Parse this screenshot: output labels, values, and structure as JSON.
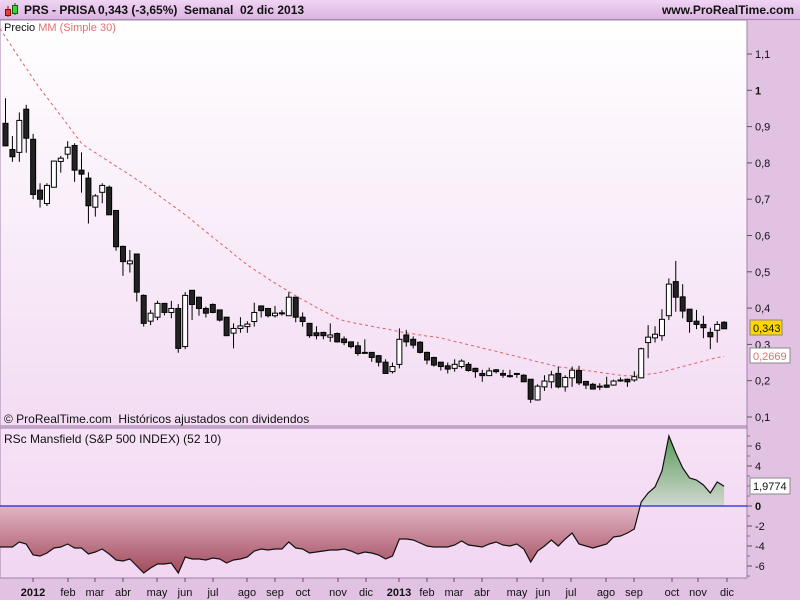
{
  "header": {
    "symbol": "PRS - PRISA",
    "quote": "0,343 (-3,65%)",
    "period": "Semanal  02 dic 2013",
    "site": "www.ProRealTime.com"
  },
  "price_panel": {
    "title": "Precio",
    "ma_label": "MM (Simple 30)",
    "footer": "© ProRealTime.com  Históricos ajustados con dividendos",
    "last_price_label": "0,343",
    "ma_last_label": "0,2669"
  },
  "indicator_panel": {
    "title": "RSc Mansfield (S&P 500 INDEX) (52 10)",
    "last_value_label": "1,9774"
  },
  "colors": {
    "up_candle": "#ffffff",
    "down_candle": "#222222",
    "ma_line": "#e06060",
    "zero_line": "#2020e0",
    "negative_fill": "#a85060",
    "positive_fill": "#5a9a5a",
    "last_price_bg": "#ffd700"
  },
  "chart_data": [
    {
      "type": "candlestick",
      "title": "",
      "ylim": [
        0.08,
        1.19
      ],
      "y_ticks": [
        "1,1",
        "1",
        "0,9",
        "0,8",
        "0,7",
        "0,6",
        "0,5",
        "0,4",
        "0,3",
        "0,2",
        "0,1"
      ],
      "x_ticks": [
        "2012",
        "feb",
        "mar",
        "abr",
        "may",
        "jun",
        "jul",
        "ago",
        "sep",
        "oct",
        "nov",
        "dic",
        "2013",
        "feb",
        "mar",
        "abr",
        "may",
        "jun",
        "jul",
        "ago",
        "sep",
        "oct",
        "nov",
        "dic"
      ],
      "series": [
        {
          "name": "Precio",
          "ohlc": [
            [
              0.909,
              0.978,
              0.846,
              0.847
            ],
            [
              0.837,
              0.874,
              0.803,
              0.817
            ],
            [
              0.829,
              0.939,
              0.803,
              0.917
            ],
            [
              0.948,
              0.96,
              0.828,
              0.868
            ],
            [
              0.865,
              0.88,
              0.7,
              0.713
            ],
            [
              0.725,
              0.744,
              0.677,
              0.7
            ],
            [
              0.688,
              0.744,
              0.681,
              0.738
            ],
            [
              0.733,
              0.805,
              0.733,
              0.805
            ],
            [
              0.804,
              0.819,
              0.773,
              0.813
            ],
            [
              0.824,
              0.86,
              0.811,
              0.843
            ],
            [
              0.848,
              0.854,
              0.748,
              0.78
            ],
            [
              0.78,
              0.829,
              0.718,
              0.769
            ],
            [
              0.758,
              0.774,
              0.633,
              0.682
            ],
            [
              0.678,
              0.714,
              0.652,
              0.709
            ],
            [
              0.719,
              0.744,
              0.689,
              0.738
            ],
            [
              0.733,
              0.738,
              0.657,
              0.657
            ],
            [
              0.669,
              0.67,
              0.558,
              0.569
            ],
            [
              0.57,
              0.572,
              0.489,
              0.528
            ],
            [
              0.522,
              0.56,
              0.498,
              0.53
            ],
            [
              0.549,
              0.549,
              0.418,
              0.444
            ],
            [
              0.435,
              0.438,
              0.349,
              0.358
            ],
            [
              0.364,
              0.395,
              0.353,
              0.386
            ],
            [
              0.375,
              0.42,
              0.367,
              0.413
            ],
            [
              0.413,
              0.413,
              0.38,
              0.388
            ],
            [
              0.388,
              0.42,
              0.372,
              0.399
            ],
            [
              0.399,
              0.411,
              0.277,
              0.289
            ],
            [
              0.294,
              0.444,
              0.287,
              0.435
            ],
            [
              0.449,
              0.45,
              0.367,
              0.41
            ],
            [
              0.43,
              0.431,
              0.379,
              0.399
            ],
            [
              0.399,
              0.404,
              0.374,
              0.386
            ],
            [
              0.41,
              0.413,
              0.386,
              0.388
            ],
            [
              0.395,
              0.395,
              0.363,
              0.367
            ],
            [
              0.375,
              0.375,
              0.324,
              0.324
            ],
            [
              0.331,
              0.358,
              0.289,
              0.344
            ],
            [
              0.344,
              0.375,
              0.332,
              0.351
            ],
            [
              0.349,
              0.364,
              0.332,
              0.356
            ],
            [
              0.363,
              0.415,
              0.349,
              0.388
            ],
            [
              0.406,
              0.406,
              0.374,
              0.393
            ],
            [
              0.399,
              0.399,
              0.374,
              0.379
            ],
            [
              0.379,
              0.406,
              0.374,
              0.386
            ],
            [
              0.387,
              0.395,
              0.379,
              0.387
            ],
            [
              0.379,
              0.444,
              0.379,
              0.43
            ],
            [
              0.43,
              0.431,
              0.361,
              0.375
            ],
            [
              0.375,
              0.388,
              0.349,
              0.363
            ],
            [
              0.358,
              0.358,
              0.318,
              0.324
            ],
            [
              0.332,
              0.35,
              0.314,
              0.324
            ],
            [
              0.333,
              0.335,
              0.314,
              0.324
            ],
            [
              0.32,
              0.358,
              0.307,
              0.326
            ],
            [
              0.33,
              0.333,
              0.305,
              0.307
            ],
            [
              0.315,
              0.322,
              0.298,
              0.305
            ],
            [
              0.307,
              0.307,
              0.289,
              0.294
            ],
            [
              0.296,
              0.307,
              0.269,
              0.275
            ],
            [
              0.278,
              0.314,
              0.275,
              0.278
            ],
            [
              0.278,
              0.278,
              0.252,
              0.264
            ],
            [
              0.269,
              0.271,
              0.239,
              0.251
            ],
            [
              0.251,
              0.259,
              0.22,
              0.22
            ],
            [
              0.225,
              0.25,
              0.22,
              0.239
            ],
            [
              0.245,
              0.344,
              0.234,
              0.314
            ],
            [
              0.326,
              0.34,
              0.294,
              0.307
            ],
            [
              0.314,
              0.322,
              0.289,
              0.298
            ],
            [
              0.306,
              0.309,
              0.275,
              0.278
            ],
            [
              0.278,
              0.28,
              0.245,
              0.257
            ],
            [
              0.264,
              0.266,
              0.239,
              0.243
            ],
            [
              0.251,
              0.251,
              0.228,
              0.239
            ],
            [
              0.241,
              0.25,
              0.22,
              0.232
            ],
            [
              0.234,
              0.259,
              0.225,
              0.245
            ],
            [
              0.239,
              0.259,
              0.234,
              0.254
            ],
            [
              0.245,
              0.251,
              0.225,
              0.228
            ],
            [
              0.234,
              0.236,
              0.208,
              0.225
            ],
            [
              0.22,
              0.23,
              0.197,
              0.214
            ],
            [
              0.214,
              0.236,
              0.214,
              0.227
            ],
            [
              0.23,
              0.232,
              0.22,
              0.225
            ],
            [
              0.22,
              0.23,
              0.208,
              0.215
            ],
            [
              0.214,
              0.23,
              0.208,
              0.214
            ],
            [
              0.22,
              0.22,
              0.208,
              0.22
            ],
            [
              0.215,
              0.218,
              0.197,
              0.197
            ],
            [
              0.204,
              0.204,
              0.139,
              0.149
            ],
            [
              0.147,
              0.19,
              0.145,
              0.185
            ],
            [
              0.183,
              0.215,
              0.172,
              0.199
            ],
            [
              0.197,
              0.227,
              0.179,
              0.216
            ],
            [
              0.22,
              0.239,
              0.179,
              0.183
            ],
            [
              0.183,
              0.215,
              0.17,
              0.209
            ],
            [
              0.208,
              0.239,
              0.183,
              0.229
            ],
            [
              0.228,
              0.241,
              0.188,
              0.194
            ],
            [
              0.198,
              0.198,
              0.177,
              0.188
            ],
            [
              0.19,
              0.194,
              0.177,
              0.177
            ],
            [
              0.185,
              0.193,
              0.174,
              0.185
            ],
            [
              0.188,
              0.211,
              0.18,
              0.182
            ],
            [
              0.188,
              0.203,
              0.186,
              0.199
            ],
            [
              0.202,
              0.209,
              0.197,
              0.202
            ],
            [
              0.204,
              0.206,
              0.183,
              0.197
            ],
            [
              0.202,
              0.226,
              0.197,
              0.211
            ],
            [
              0.208,
              0.291,
              0.206,
              0.288
            ],
            [
              0.305,
              0.353,
              0.262,
              0.32
            ],
            [
              0.318,
              0.35,
              0.305,
              0.328
            ],
            [
              0.324,
              0.397,
              0.31,
              0.369
            ],
            [
              0.379,
              0.482,
              0.367,
              0.466
            ],
            [
              0.473,
              0.53,
              0.39,
              0.43
            ],
            [
              0.431,
              0.466,
              0.372,
              0.392
            ],
            [
              0.397,
              0.397,
              0.332,
              0.363
            ],
            [
              0.364,
              0.395,
              0.342,
              0.355
            ],
            [
              0.355,
              0.379,
              0.317,
              0.346
            ],
            [
              0.333,
              0.346,
              0.287,
              0.321
            ],
            [
              0.339,
              0.364,
              0.305,
              0.355
            ],
            [
              0.361,
              0.364,
              0.342,
              0.343
            ]
          ]
        },
        {
          "name": "MM (Simple 30)",
          "values": [
            1.147,
            1.118,
            1.089,
            1.061,
            1.032,
            1.005,
            0.98,
            0.955,
            0.93,
            0.905,
            0.879,
            0.854,
            0.84,
            0.828,
            0.816,
            0.803,
            0.791,
            0.779,
            0.767,
            0.754,
            0.741,
            0.727,
            0.713,
            0.699,
            0.685,
            0.671,
            0.657,
            0.642,
            0.626,
            0.611,
            0.595,
            0.58,
            0.565,
            0.549,
            0.534,
            0.519,
            0.506,
            0.494,
            0.481,
            0.469,
            0.457,
            0.446,
            0.434,
            0.423,
            0.413,
            0.402,
            0.392,
            0.382,
            0.371,
            0.365,
            0.361,
            0.357,
            0.354,
            0.35,
            0.346,
            0.343,
            0.339,
            0.335,
            0.332,
            0.329,
            0.326,
            0.323,
            0.321,
            0.318,
            0.313,
            0.308,
            0.304,
            0.299,
            0.295,
            0.29,
            0.285,
            0.281,
            0.276,
            0.271,
            0.267,
            0.262,
            0.257,
            0.252,
            0.248,
            0.243,
            0.238,
            0.236,
            0.233,
            0.231,
            0.228,
            0.226,
            0.223,
            0.22,
            0.218,
            0.215,
            0.213,
            0.215,
            0.216,
            0.218,
            0.22,
            0.224,
            0.229,
            0.234,
            0.239,
            0.244,
            0.249,
            0.254,
            0.259,
            0.264,
            0.2669
          ]
        }
      ]
    },
    {
      "type": "area",
      "title": "RSc Mansfield (S&P 500 INDEX) (52 10)",
      "ylim": [
        -7,
        8
      ],
      "y_ticks": [
        "6",
        "4",
        "0",
        "-2",
        "-4",
        "-6"
      ],
      "baseline": 0,
      "series": [
        {
          "name": "RSc Mansfield",
          "values": [
            -4.1,
            -4.1,
            -3.6,
            -3.8,
            -4.9,
            -5.0,
            -4.7,
            -4.2,
            -4.1,
            -3.8,
            -4.2,
            -4.2,
            -4.8,
            -4.6,
            -4.3,
            -4.8,
            -5.4,
            -5.5,
            -5.3,
            -6.0,
            -6.7,
            -6.2,
            -5.8,
            -5.8,
            -5.7,
            -6.7,
            -5.1,
            -5.3,
            -5.3,
            -5.4,
            -5.2,
            -5.3,
            -5.7,
            -5.4,
            -5.3,
            -5.1,
            -4.5,
            -4.3,
            -4.4,
            -4.3,
            -4.3,
            -3.6,
            -4.2,
            -4.3,
            -4.7,
            -4.6,
            -4.5,
            -4.4,
            -4.4,
            -4.3,
            -4.5,
            -4.8,
            -4.6,
            -4.7,
            -4.9,
            -5.3,
            -5.0,
            -3.3,
            -3.3,
            -3.4,
            -3.7,
            -4.0,
            -4.1,
            -4.1,
            -4.1,
            -3.9,
            -3.5,
            -3.9,
            -4.0,
            -4.1,
            -3.8,
            -3.6,
            -3.9,
            -4.0,
            -3.8,
            -4.3,
            -5.6,
            -4.5,
            -4.0,
            -3.4,
            -4.0,
            -3.3,
            -2.7,
            -3.8,
            -4.0,
            -4.2,
            -4.0,
            -3.8,
            -3.1,
            -3.0,
            -2.7,
            -2.3,
            0.4,
            1.3,
            1.9,
            3.5,
            7.0,
            5.3,
            3.8,
            2.8,
            2.6,
            2.1,
            1.3,
            2.4,
            1.9774
          ]
        }
      ]
    }
  ]
}
